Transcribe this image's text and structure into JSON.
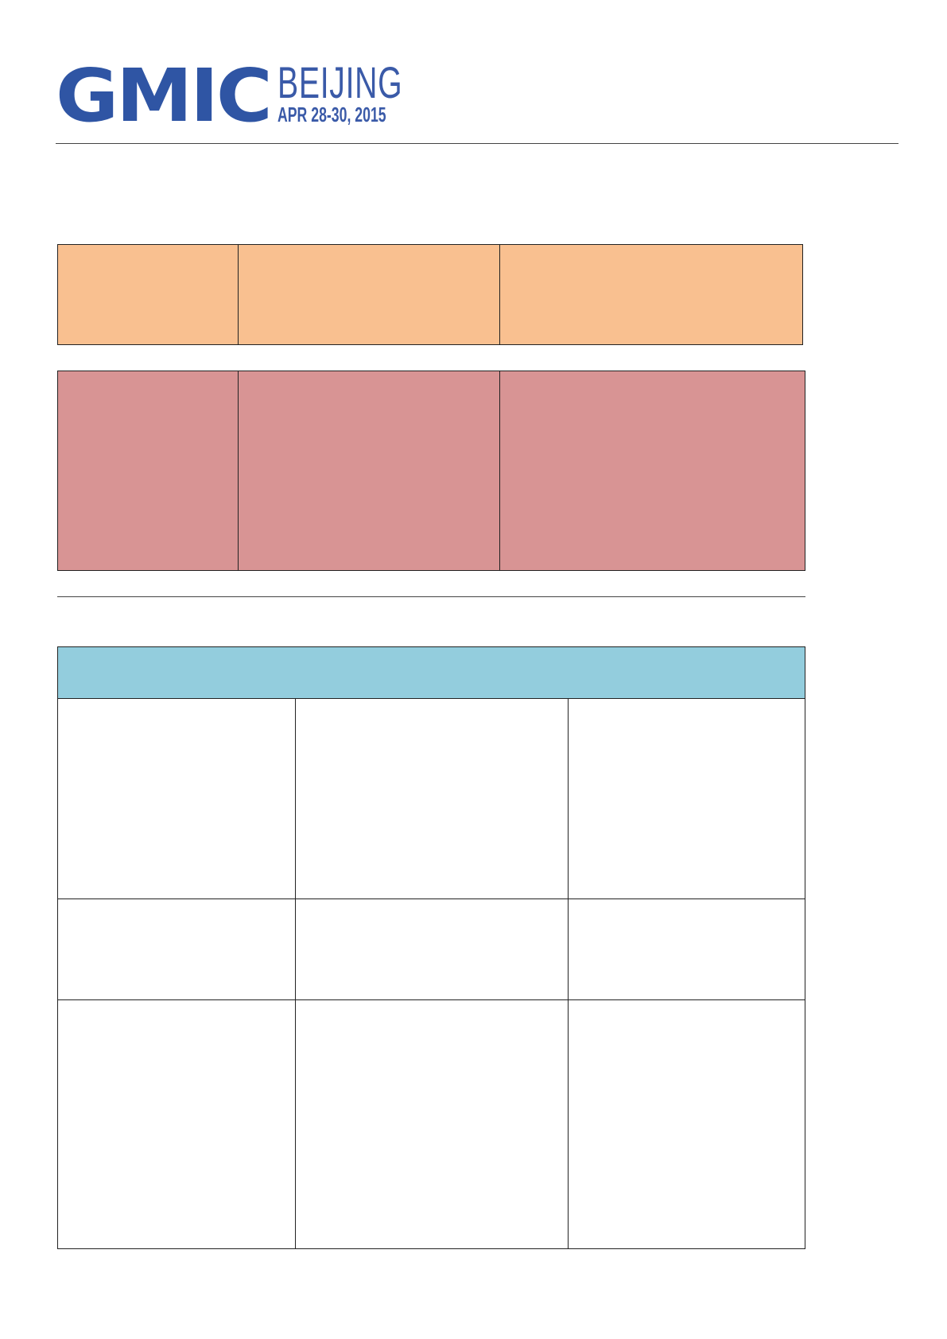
{
  "header": {
    "logo": {
      "brand": "GMIC",
      "city": "BEIJING",
      "dates": "APR 28-30, 2015",
      "color": "#2f55a4"
    }
  },
  "tables": {
    "orange": {
      "color": "#f9c090",
      "rows": [
        [
          "",
          "",
          ""
        ]
      ]
    },
    "pink": {
      "color": "#d89494",
      "rows": [
        [
          "",
          "",
          ""
        ]
      ]
    },
    "blue": {
      "header_color": "#93cddd",
      "header": "",
      "rows": [
        [
          "",
          "",
          ""
        ],
        [
          "",
          "",
          ""
        ],
        [
          "",
          "",
          ""
        ]
      ]
    }
  }
}
